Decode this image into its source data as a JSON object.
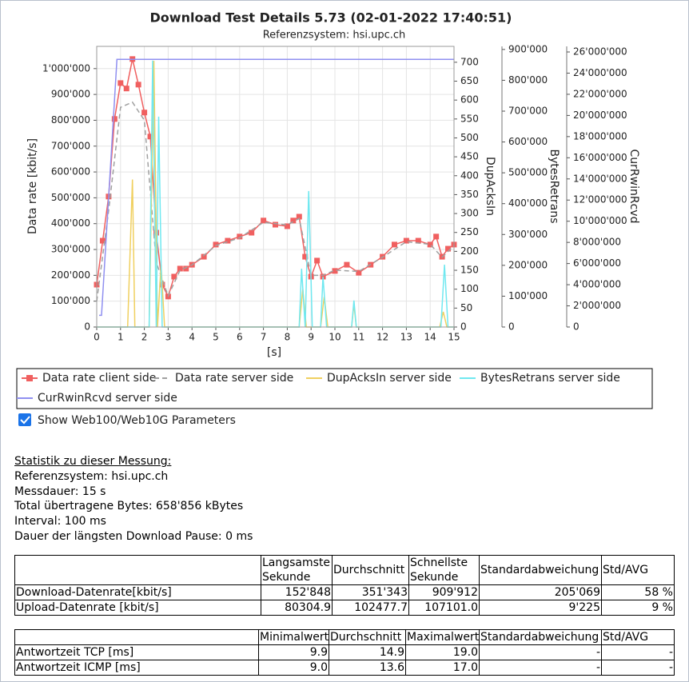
{
  "chart_data": {
    "type": "line",
    "title": "Download Test Details 5.73 (02-01-2022 17:40:51)",
    "subtitle": "Referenzsystem: hsi.upc.ch",
    "x_label": "[s]",
    "y_label": "Data rate [kbit/s]",
    "y2_label": "DupAcksIn",
    "y3_label": "BytesRetrans",
    "y4_label": "CurRwinRcvd",
    "xlim": [
      0,
      15
    ],
    "xticks": [
      0,
      1,
      2,
      3,
      4,
      5,
      6,
      7,
      8,
      9,
      10,
      11,
      12,
      13,
      14,
      15
    ],
    "ylim": [
      0,
      1086000
    ],
    "yticks": [
      0,
      {
        "value": 100000,
        "label": "100'000"
      },
      {
        "value": 200000,
        "label": "200'000"
      },
      {
        "value": 300000,
        "label": "300'000"
      },
      {
        "value": 400000,
        "label": "400'000"
      },
      {
        "value": 500000,
        "label": "500'000"
      },
      {
        "value": 600000,
        "label": "600'000"
      },
      {
        "value": 700000,
        "label": "700'000"
      },
      {
        "value": 800000,
        "label": "800'000"
      },
      {
        "value": 900000,
        "label": "900'000"
      },
      {
        "value": 1000000,
        "label": "1'000'000"
      }
    ],
    "y2lim": [
      0,
      742
    ],
    "y2ticks": [
      0,
      50,
      100,
      150,
      200,
      250,
      300,
      350,
      400,
      450,
      500,
      550,
      600,
      650,
      700
    ],
    "y3lim": [
      0,
      910000
    ],
    "y3ticks": [
      0,
      {
        "value": 100000,
        "label": "100'000"
      },
      {
        "value": 200000,
        "label": "200'000"
      },
      {
        "value": 300000,
        "label": "300'000"
      },
      {
        "value": 400000,
        "label": "400'000"
      },
      {
        "value": 500000,
        "label": "500'000"
      },
      {
        "value": 600000,
        "label": "600'000"
      },
      {
        "value": 700000,
        "label": "700'000"
      },
      {
        "value": 800000,
        "label": "800'000"
      },
      {
        "value": 900000,
        "label": "900'000"
      }
    ],
    "y4lim": [
      0,
      26530000
    ],
    "y4ticks": [
      0,
      {
        "value": 2000000,
        "label": "2'000'000"
      },
      {
        "value": 4000000,
        "label": "4'000'000"
      },
      {
        "value": 6000000,
        "label": "6'000'000"
      },
      {
        "value": 8000000,
        "label": "8'000'000"
      },
      {
        "value": 10000000,
        "label": "10'000'000"
      },
      {
        "value": 12000000,
        "label": "12'000'000"
      },
      {
        "value": 14000000,
        "label": "14'000'000"
      },
      {
        "value": 16000000,
        "label": "16'000'000"
      },
      {
        "value": 18000000,
        "label": "18'000'000"
      },
      {
        "value": 20000000,
        "label": "20'000'000"
      },
      {
        "value": 22000000,
        "label": "22'000'000"
      },
      {
        "value": 24000000,
        "label": "24'000'000"
      },
      {
        "value": 26000000,
        "label": "26'000'000"
      }
    ],
    "grid": true,
    "series": [
      {
        "name": "Data rate client side",
        "color": "#f06060",
        "marker": "square",
        "x": [
          0,
          0.25,
          0.5,
          0.75,
          1,
          1.25,
          1.5,
          1.75,
          2,
          2.25,
          2.5,
          2.75,
          3,
          3.25,
          3.5,
          3.75,
          4,
          4.5,
          5,
          5.5,
          6,
          6.5,
          7,
          7.5,
          8,
          8.25,
          8.5,
          8.75,
          9,
          9.25,
          9.5,
          10,
          10.5,
          11,
          11.5,
          12,
          12.5,
          13,
          13.5,
          14,
          14.25,
          14.5,
          14.75,
          15
        ],
        "values": [
          164000,
          334000,
          505000,
          805000,
          944000,
          923000,
          1037000,
          938000,
          830000,
          737000,
          365000,
          164000,
          118000,
          195000,
          226000,
          226000,
          241000,
          272000,
          319000,
          334000,
          350000,
          365000,
          412000,
          396000,
          390000,
          412000,
          427000,
          272000,
          195000,
          257000,
          195000,
          217000,
          241000,
          210000,
          241000,
          272000,
          319000,
          334000,
          334000,
          319000,
          350000,
          272000,
          303000,
          319000
        ]
      },
      {
        "name": "Data rate server side",
        "color": "#a0a0a0",
        "dash": true,
        "x": [
          0,
          0.5,
          1,
          1.5,
          2,
          2.5,
          3,
          3.5,
          4,
          5,
          6,
          7,
          8,
          8.5,
          9,
          9.5,
          10,
          11,
          12,
          13,
          14,
          14.5,
          15
        ],
        "values": [
          100000,
          450000,
          850000,
          870000,
          800000,
          250000,
          120000,
          220000,
          240000,
          315000,
          345000,
          405000,
          395000,
          420000,
          200000,
          200000,
          220000,
          215000,
          270000,
          330000,
          320000,
          270000,
          315000
        ]
      },
      {
        "name": "DupAcksIn server side",
        "color": "#f0d060",
        "axis": "y2",
        "x": [
          0,
          1.3,
          1.5,
          1.6,
          2.2,
          2.4,
          2.55,
          2.7,
          2.85,
          8.5,
          8.65,
          8.8,
          9.4,
          9.55,
          9.7,
          10.7,
          10.8,
          10.9,
          14.4,
          14.55,
          14.7,
          15
        ],
        "values": [
          0,
          0,
          390,
          0,
          0,
          704,
          0,
          165,
          0,
          0,
          100,
          0,
          0,
          80,
          0,
          0,
          60,
          0,
          0,
          40,
          0,
          0
        ]
      },
      {
        "name": "BytesRetrans server side",
        "color": "#70e8f0",
        "axis": "y3",
        "x": [
          0,
          2.2,
          2.35,
          2.5,
          2.6,
          2.75,
          8.5,
          8.6,
          8.75,
          8.9,
          9.05,
          9.4,
          9.5,
          9.65,
          10.7,
          10.8,
          10.9,
          14.45,
          14.6,
          14.75,
          15
        ],
        "values": [
          0,
          0,
          864000,
          0,
          682000,
          0,
          0,
          189000,
          0,
          441000,
          0,
          0,
          163000,
          0,
          0,
          86000,
          0,
          0,
          202000,
          0,
          0
        ]
      },
      {
        "name": "CurRwinRcvd server side",
        "color": "#9090f0",
        "axis": "y4",
        "x": [
          0.1,
          0.2,
          0.85,
          15
        ],
        "values": [
          1100000,
          1100000,
          25300000,
          25300000
        ]
      }
    ]
  },
  "checkbox": "Show Web100/Web10G Parameters",
  "stats": [
    "Statistik zu dieser Messung: ",
    "Referenzsystem: hsi.upc.ch",
    "Messdauer: 15 s",
    "Total übertragene Bytes: 658'856 kBytes",
    "Interval:  100 ms",
    "Dauer der längsten Download Pause: 0 ms"
  ],
  "table1": {
    "columns": [
      "Langsamste\nSekunde",
      "Durchschnitt",
      "Schnellste\nSekunde",
      "Standardabweichung",
      "Std/AVG"
    ],
    "rows": [
      [
        "Download-Datenrate[kbit/s]",
        "152'848",
        "351'343",
        "909'912",
        "205'069",
        "58 %"
      ],
      [
        "Upload-Datenrate [kbit/s]",
        "80304.9",
        "102477.7",
        "107101.0",
        "9'225",
        "9 %"
      ]
    ]
  },
  "table2": {
    "columns": [
      "Minimalwert",
      "Durchschnitt",
      "Maximalwert",
      "Standardabweichung",
      "Std/AVG"
    ],
    "rows": [
      [
        "Antwortzeit TCP [ms]",
        "9.9",
        "14.9",
        "19.0",
        "-",
        "-"
      ],
      [
        "Antwortzeit ICMP [ms]",
        "9.0",
        "13.6",
        "17.0",
        "-",
        "-"
      ]
    ]
  }
}
